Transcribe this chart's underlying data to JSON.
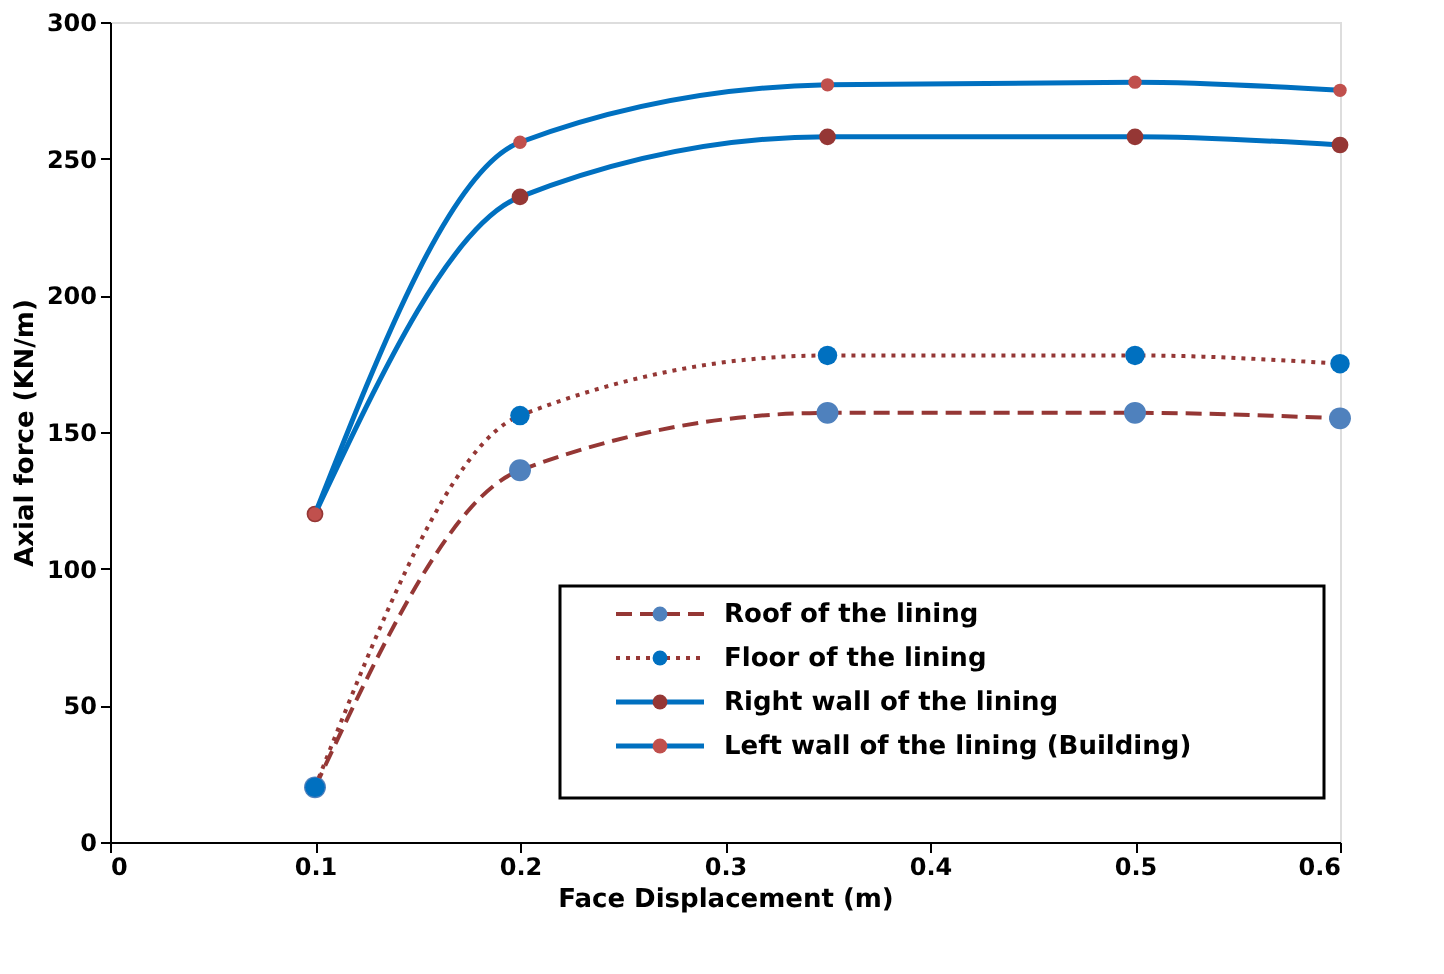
{
  "chart_data": {
    "type": "line",
    "xlabel": "Face Displacement (m)",
    "ylabel": "Axial force (KN/m)",
    "x": [
      0.1,
      0.2,
      0.35,
      0.5,
      0.6
    ],
    "xlim": [
      0,
      0.6
    ],
    "xticks": [
      {
        "value": 0,
        "label": "0"
      },
      0.1,
      0.2,
      0.3,
      0.4,
      0.5,
      0.6
    ],
    "ylim": [
      0,
      300
    ],
    "yticks": [
      0,
      50,
      100,
      150,
      200,
      250,
      300
    ],
    "grid": false,
    "legend": "bottom right",
    "marker": "circle",
    "series": [
      {
        "name": "Roof of the lining",
        "color": "#953735",
        "colors": [
          "#4f81bd",
          "#4f81bd",
          "#4f81bd",
          "#4f81bd",
          "#4f81bd"
        ],
        "line_style": "dashed",
        "values": [
          20,
          136,
          157,
          157,
          155
        ]
      },
      {
        "name": "Floor of the lining",
        "color": "#953735",
        "colors": [
          "#0070c0",
          "#0070c0",
          "#0070c0",
          "#0070c0",
          "#0070c0"
        ],
        "line_style": "dotted",
        "values": [
          20,
          156,
          178,
          178,
          175
        ]
      },
      {
        "name": "Right wall of the lining",
        "color": "#0070c0",
        "colors": [
          "#953735",
          "#953735",
          "#953735",
          "#953735",
          "#953735"
        ],
        "line_style": "solid",
        "values": [
          120,
          236,
          258,
          258,
          255
        ]
      },
      {
        "name": "Left wall of the lining (Building)",
        "color": "#0070c0",
        "colors": [
          "#c0504d",
          "#c0504d",
          "#c0504d",
          "#c0504d",
          "#c0504d"
        ],
        "line_style": "solid",
        "values": [
          120,
          256,
          277,
          278,
          275
        ]
      }
    ]
  }
}
